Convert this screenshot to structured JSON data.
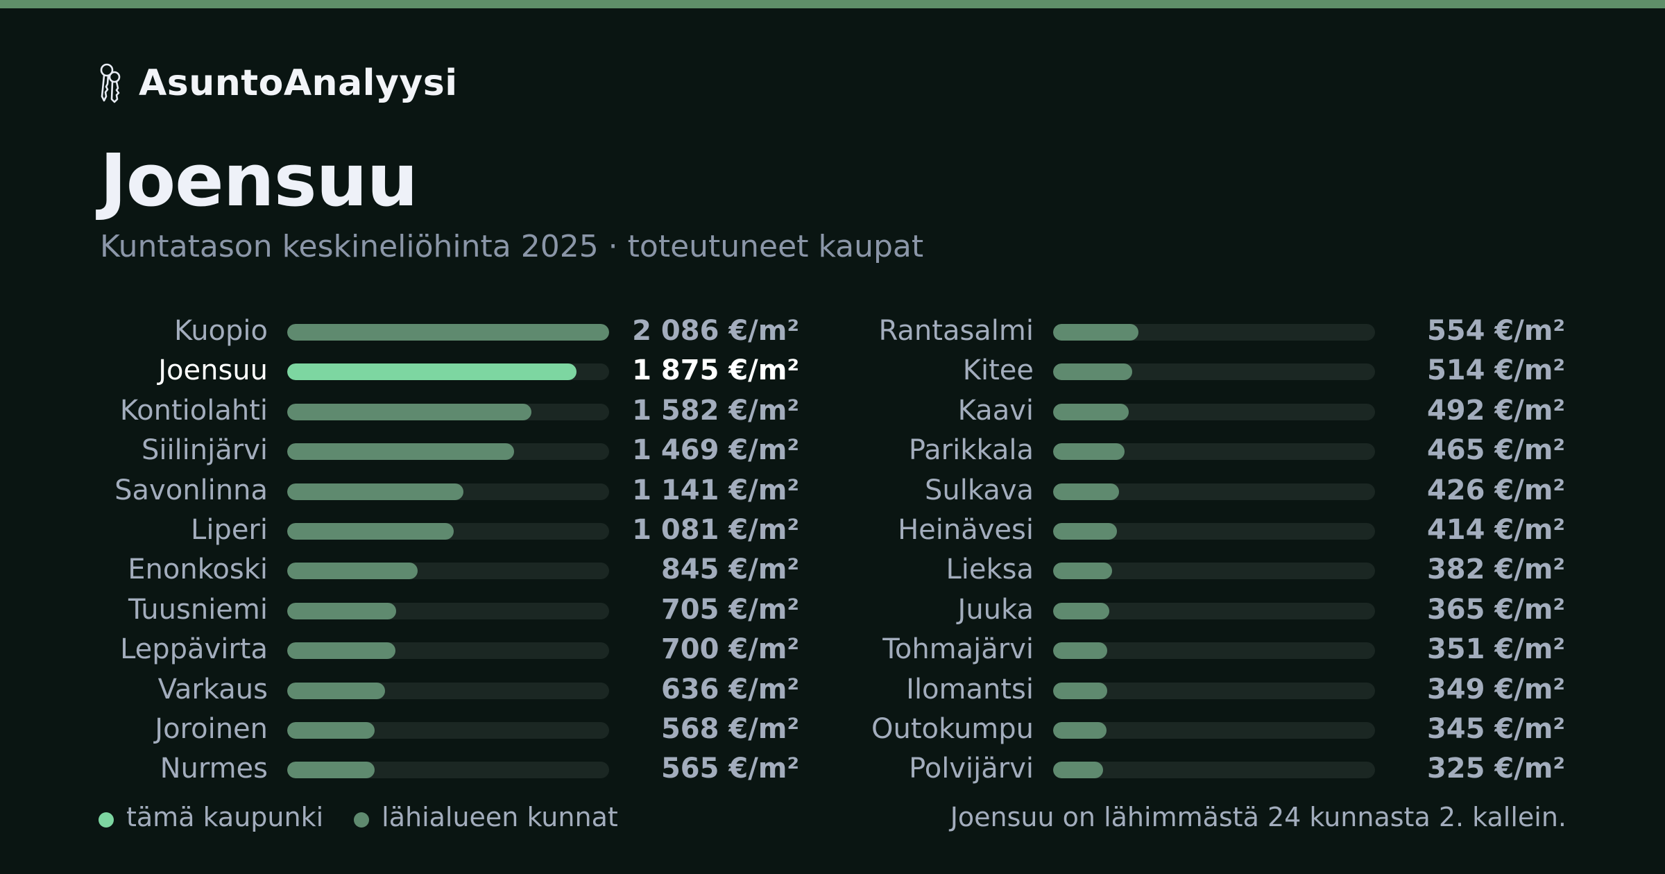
{
  "brand": {
    "name": "AsuntoAnalyysi",
    "icon": "keys-icon"
  },
  "header": {
    "title": "Joensuu",
    "subtitle": "Kuntatason keskineliöhinta 2025 · toteutuneet kaupat"
  },
  "colors": {
    "highlight": "#7dd6a1",
    "neighbors": "#5f8a6f",
    "track": "#1b2723",
    "background": "#0a1512",
    "accent_bar": "#5f8f69"
  },
  "chart_data": {
    "type": "bar",
    "orientation": "horizontal",
    "unit": "€/m²",
    "xlim": [
      0,
      2086
    ],
    "highlight": "Joensuu",
    "categories": [
      "Kuopio",
      "Joensuu",
      "Kontiolahti",
      "Siilinjärvi",
      "Savonlinna",
      "Liperi",
      "Enonkoski",
      "Tuusniemi",
      "Leppävirta",
      "Varkaus",
      "Joroinen",
      "Nurmes",
      "Rantasalmi",
      "Kitee",
      "Kaavi",
      "Parikkala",
      "Sulkava",
      "Heinävesi",
      "Lieksa",
      "Juuka",
      "Tohmajärvi",
      "Ilomantsi",
      "Outokumpu",
      "Polvijärvi"
    ],
    "values": [
      2086,
      1875,
      1582,
      1469,
      1141,
      1081,
      845,
      705,
      700,
      636,
      568,
      565,
      554,
      514,
      492,
      465,
      426,
      414,
      382,
      365,
      351,
      349,
      345,
      325
    ],
    "value_labels": [
      "2 086 €/m²",
      "1 875 €/m²",
      "1 582 €/m²",
      "1 469 €/m²",
      "1 141 €/m²",
      "1 081 €/m²",
      "845 €/m²",
      "705 €/m²",
      "700 €/m²",
      "636 €/m²",
      "568 €/m²",
      "565 €/m²",
      "554 €/m²",
      "514 €/m²",
      "492 €/m²",
      "465 €/m²",
      "426 €/m²",
      "414 €/m²",
      "382 €/m²",
      "365 €/m²",
      "351 €/m²",
      "349 €/m²",
      "345 €/m²",
      "325 €/m²"
    ],
    "grid": false,
    "legend": {
      "position": "bottom-left",
      "entries": [
        "tämä kaupunki",
        "lähialueen kunnat"
      ]
    }
  },
  "footer": {
    "legend": [
      {
        "label": "tämä kaupunki",
        "color": "#7dd6a1"
      },
      {
        "label": "lähialueen kunnat",
        "color": "#5f8a6f"
      }
    ],
    "note": "Joensuu on lähimmästä 24 kunnasta 2. kallein."
  }
}
